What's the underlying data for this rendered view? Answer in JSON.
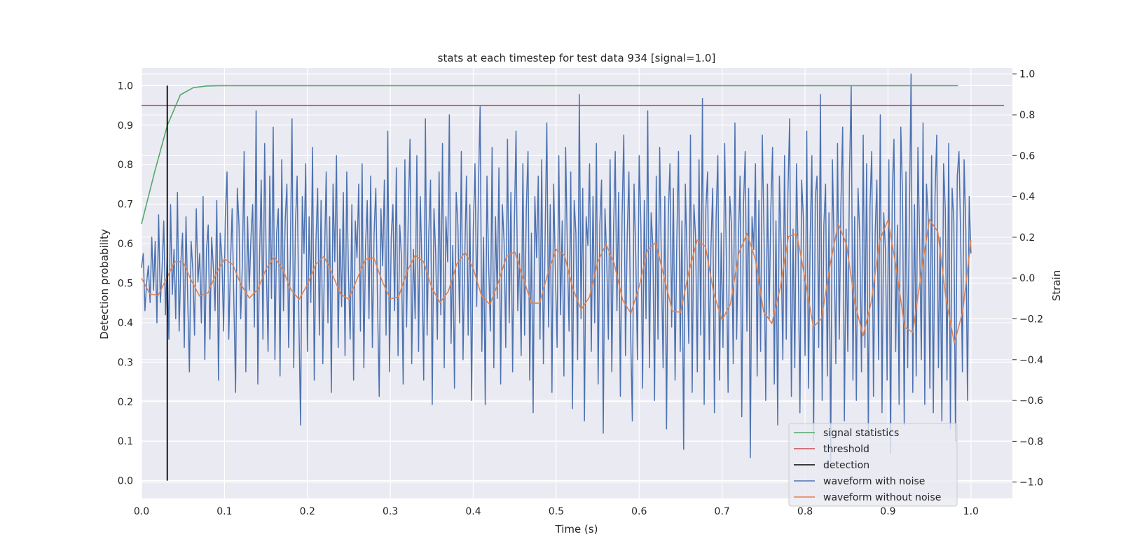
{
  "chart_data": {
    "type": "line",
    "title": "stats at each timestep for test data 934 [signal=1.0]",
    "xlabel": "Time (s)",
    "ylabel": "Detection probability",
    "y2label": "Strain",
    "xlim": [
      0.0,
      1.05
    ],
    "ylim": [
      -0.045,
      1.045
    ],
    "y2lim": [
      -1.08,
      1.03
    ],
    "x_ticks": [
      0.0,
      0.1,
      0.2,
      0.3,
      0.4,
      0.5,
      0.6,
      0.7,
      0.8,
      0.9,
      1.0
    ],
    "x_tick_labels": [
      "0.0",
      "0.1",
      "0.2",
      "0.3",
      "0.4",
      "0.5",
      "0.6",
      "0.7",
      "0.8",
      "0.9",
      "1.0"
    ],
    "y_ticks": [
      0.0,
      0.1,
      0.2,
      0.3,
      0.4,
      0.5,
      0.6,
      0.7,
      0.8,
      0.9,
      1.0
    ],
    "y_tick_labels": [
      "0.0",
      "0.1",
      "0.2",
      "0.3",
      "0.4",
      "0.5",
      "0.6",
      "0.7",
      "0.8",
      "0.9",
      "1.0"
    ],
    "y2_ticks": [
      -1.0,
      -0.8,
      -0.6,
      -0.4,
      -0.2,
      0.0,
      0.2,
      0.4,
      0.6,
      0.8,
      1.0
    ],
    "y2_tick_labels": [
      "−1.0",
      "−0.8",
      "−0.6",
      "−0.4",
      "−0.2",
      "0.0",
      "0.2",
      "0.4",
      "0.6",
      "0.8",
      "1.0"
    ],
    "grid": true,
    "legend_position": "bottom-right",
    "colors": {
      "background": "#eaeaf2",
      "grid": "#ffffff",
      "signal_statistics": "#55a868",
      "threshold": "#c44e52",
      "detection": "#000000",
      "waveform_with_noise": "#4c72b0",
      "waveform_without_noise": "#dd8452"
    },
    "series": [
      {
        "name": "signal statistics",
        "axis": "left",
        "x": [
          0.0,
          0.0156,
          0.0312,
          0.0469,
          0.0625,
          0.0781,
          0.0938,
          0.1094,
          0.125,
          0.2,
          0.3,
          0.4,
          0.5,
          0.6,
          0.7,
          0.8,
          0.9,
          0.9844
        ],
        "values": [
          0.65,
          0.78,
          0.9,
          0.977,
          0.995,
          0.999,
          1.0,
          1.0,
          1.0,
          1.0,
          1.0,
          1.0,
          1.0,
          1.0,
          1.0,
          1.0,
          1.0,
          1.0
        ]
      },
      {
        "name": "threshold",
        "axis": "left",
        "x": [
          0.0,
          1.04
        ],
        "values": [
          0.95,
          0.95
        ]
      },
      {
        "name": "detection",
        "axis": "left",
        "x": [
          0.031,
          0.031
        ],
        "values": [
          0.0,
          1.0
        ]
      },
      {
        "name": "waveform with noise",
        "axis": "right",
        "x_range": [
          0.0,
          1.0
        ],
        "values": [
          0.05,
          0.12,
          -0.16,
          -0.02,
          0.06,
          -0.12,
          0.2,
          -0.06,
          0.18,
          -0.22,
          0.31,
          -0.12,
          0.04,
          0.28,
          -0.18,
          0.1,
          -0.3,
          0.36,
          -0.08,
          0.14,
          -0.2,
          0.42,
          -0.26,
          0.08,
          0.22,
          -0.34,
          0.3,
          -0.1,
          -0.46,
          0.18,
          0.04,
          -0.28,
          0.34,
          -0.02,
          0.12,
          -0.22,
          0.4,
          -0.4,
          0.14,
          0.26,
          -0.3,
          0.2,
          0.05,
          -0.16,
          0.38,
          -0.5,
          0.22,
          0.1,
          -0.26,
          0.3,
          0.52,
          -0.3,
          0.06,
          0.34,
          -0.12,
          -0.56,
          0.44,
          0.26,
          -0.2,
          0.08,
          0.62,
          -0.46,
          0.3,
          -0.06,
          0.2,
          0.36,
          -0.24,
          0.82,
          -0.52,
          0.1,
          0.48,
          -0.3,
          0.66,
          0.04,
          -0.36,
          0.5,
          -0.1,
          0.74,
          -0.4,
          0.22,
          0.34,
          -0.48,
          0.58,
          -0.16,
          0.28,
          0.46,
          -0.34,
          0.1,
          0.78,
          -0.44,
          0.26,
          0.5,
          -0.2,
          -0.72,
          0.4,
          0.12,
          0.56,
          -0.36,
          0.3,
          -0.12,
          0.64,
          -0.5,
          0.18,
          0.44,
          -0.28,
          0.38,
          -0.42,
          0.1,
          0.52,
          -0.22,
          0.3,
          -0.56,
          0.46,
          0.08,
          0.6,
          -0.34,
          0.24,
          -0.14,
          0.42,
          -0.38,
          0.52,
          0.02,
          -0.3,
          0.36,
          -0.5,
          0.28,
          0.1,
          0.46,
          -0.26,
          0.56,
          -0.44,
          0.16,
          0.38,
          -0.2,
          0.5,
          -0.34,
          0.22,
          0.44,
          -0.12,
          -0.58,
          0.34,
          0.06,
          0.48,
          -0.28,
          0.72,
          -0.46,
          0.2,
          0.36,
          -0.16,
          0.54,
          -0.38,
          0.26,
          0.1,
          -0.52,
          0.58,
          -0.24,
          0.32,
          0.68,
          -0.42,
          0.14,
          -0.2,
          0.6,
          -0.36,
          0.4,
          0.04,
          -0.5,
          0.78,
          -0.28,
          0.22,
          0.48,
          -0.62,
          0.34,
          0.12,
          -0.3,
          0.52,
          -0.18,
          0.66,
          -0.44,
          0.3,
          0.08,
          0.8,
          -0.32,
          0.16,
          -0.54,
          0.42,
          0.26,
          -0.22,
          0.62,
          -0.4,
          0.1,
          0.5,
          -0.28,
          0.36,
          -0.6,
          0.24,
          0.56,
          -0.14,
          0.44,
          0.84,
          -0.36,
          0.2,
          -0.62,
          0.5,
          0.06,
          -0.26,
          0.64,
          -0.44,
          0.3,
          -0.1,
          0.54,
          -0.52,
          0.36,
          0.18,
          -0.34,
          0.68,
          -0.22,
          0.42,
          -0.46,
          0.26,
          0.72,
          -0.16,
          0.12,
          -0.38,
          0.56,
          -0.28,
          0.34,
          0.62,
          -0.5,
          0.22,
          -0.66,
          0.4,
          0.1,
          0.5,
          -0.3,
          0.58,
          -0.42,
          0.2,
          0.76,
          -0.24,
          0.36,
          -0.56,
          0.46,
          0.04,
          -0.34,
          0.6,
          -0.18,
          0.28,
          -0.48,
          0.64,
          0.14,
          -0.26,
          0.52,
          -0.64,
          0.38,
          0.22,
          -0.4,
          0.9,
          -0.2,
          0.44,
          -0.7,
          0.3,
          0.16,
          0.56,
          -0.36,
          0.4,
          -0.22,
          0.66,
          -0.52,
          0.26,
          0.48,
          -0.76,
          0.34,
          0.1,
          -0.3,
          0.58,
          -0.46,
          0.22,
          0.62,
          -0.16,
          0.42,
          -0.58,
          0.3,
          0.7,
          -0.38,
          0.2,
          0.52,
          -0.26,
          -0.7,
          0.46,
          0.12,
          -0.4,
          0.6,
          0.26,
          -0.54,
          0.38,
          -0.2,
          0.82,
          -0.44,
          0.32,
          0.16,
          -0.6,
          0.5,
          -0.3,
          0.64,
          0.06,
          -0.44,
          0.4,
          -0.74,
          0.3,
          0.56,
          -0.24,
          0.44,
          -0.5,
          0.18,
          0.62,
          -0.36,
          0.28,
          -0.84,
          0.46,
          0.1,
          -0.32,
          0.7,
          -0.56,
          0.36,
          0.2,
          -0.46,
          0.58,
          -0.28,
          0.88,
          -0.62,
          0.34,
          0.52,
          -0.4,
          0.16,
          0.44,
          -0.66,
          0.3,
          0.6,
          -0.5,
          0.22,
          -0.34,
          0.66,
          0.08,
          -0.56,
          0.4,
          0.26,
          -0.42,
          0.76,
          -0.3,
          0.18,
          0.5,
          -0.68,
          0.36,
          0.62,
          -0.26,
          0.44,
          -0.88,
          0.3,
          0.14,
          0.56,
          -0.48,
          0.38,
          -0.36,
          0.7,
          0.22,
          -0.6,
          0.46,
          -0.2,
          0.34,
          0.64,
          -0.52,
          0.28,
          -0.72,
          0.5,
          0.16,
          -0.4,
          0.6,
          -0.3,
          0.42,
          0.78,
          -0.58,
          0.24,
          -0.44,
          0.56,
          0.1,
          -0.66,
          0.48,
          0.3,
          -0.38,
          0.72,
          -0.54,
          0.2,
          0.6,
          -0.8,
          0.4,
          0.5,
          -0.34,
          0.9,
          -0.6,
          0.26,
          0.46,
          -0.48,
          0.32,
          -0.9,
          0.58,
          0.14,
          -0.42,
          0.66,
          -0.3,
          0.38,
          0.74,
          -0.7,
          0.24,
          -0.36,
          0.52,
          0.94,
          -0.5,
          0.3,
          -0.6,
          0.44,
          0.2,
          -0.46,
          0.7,
          -0.34,
          0.56,
          -0.76,
          0.36,
          0.62,
          -0.58,
          0.22,
          0.48,
          -0.4,
          0.8,
          -0.66,
          0.32,
          0.14,
          -0.5,
          0.58,
          -0.86,
          0.42,
          0.68,
          -0.36,
          0.26,
          -0.62,
          0.74,
          0.4,
          -0.72,
          0.52,
          -0.44,
          0.3,
          1.0,
          -0.56,
          0.36,
          -0.48,
          0.64,
          0.18,
          -0.4,
          0.76,
          -0.62,
          0.46,
          0.3,
          -0.54,
          0.6,
          -0.66,
          0.4,
          0.7,
          -0.44,
          0.2,
          -0.7,
          0.56,
          0.34,
          -0.5,
          0.66,
          -0.74,
          0.44,
          0.28,
          -0.8,
          0.5,
          0.62,
          0.2,
          -0.46,
          0.58,
          0.24,
          -0.6,
          0.4,
          0.12
        ]
      },
      {
        "name": "waveform without noise",
        "axis": "right",
        "x_range": [
          0.0,
          1.0
        ],
        "sampled_from_plot": true,
        "values": [
          0.0,
          -0.078,
          -0.085,
          -0.004,
          0.08,
          0.08,
          -0.012,
          -0.088,
          -0.073,
          0.021,
          0.094,
          0.066,
          -0.032,
          -0.098,
          -0.056,
          0.043,
          0.103,
          0.045,
          -0.055,
          -0.105,
          -0.032,
          0.067,
          0.106,
          0.019,
          -0.079,
          -0.104,
          -0.003,
          0.091,
          0.1,
          -0.014,
          -0.102,
          -0.092,
          0.031,
          0.112,
          0.081,
          -0.049,
          -0.12,
          -0.065,
          0.068,
          0.127,
          0.046,
          -0.087,
          -0.13,
          -0.024,
          0.105,
          0.129,
          0.002,
          -0.123,
          -0.123,
          0.024,
          0.14,
          0.112,
          -0.051,
          -0.154,
          -0.094,
          0.079,
          0.166,
          0.07,
          -0.107,
          -0.173,
          -0.04,
          0.135,
          0.174,
          0.005,
          -0.162,
          -0.168,
          0.034,
          0.186,
          0.153,
          -0.077,
          -0.206,
          -0.128,
          0.12,
          0.218,
          0.094,
          -0.164,
          -0.223,
          -0.049,
          0.204,
          0.217,
          -0.004,
          -0.24,
          -0.198,
          0.061,
          0.267,
          0.164,
          -0.123,
          -0.283,
          -0.114,
          0.185,
          0.284,
          0.05,
          -0.241,
          -0.266,
          0.024,
          0.288,
          0.227,
          -0.104,
          -0.318,
          -0.166,
          0.185
        ]
      }
    ]
  }
}
